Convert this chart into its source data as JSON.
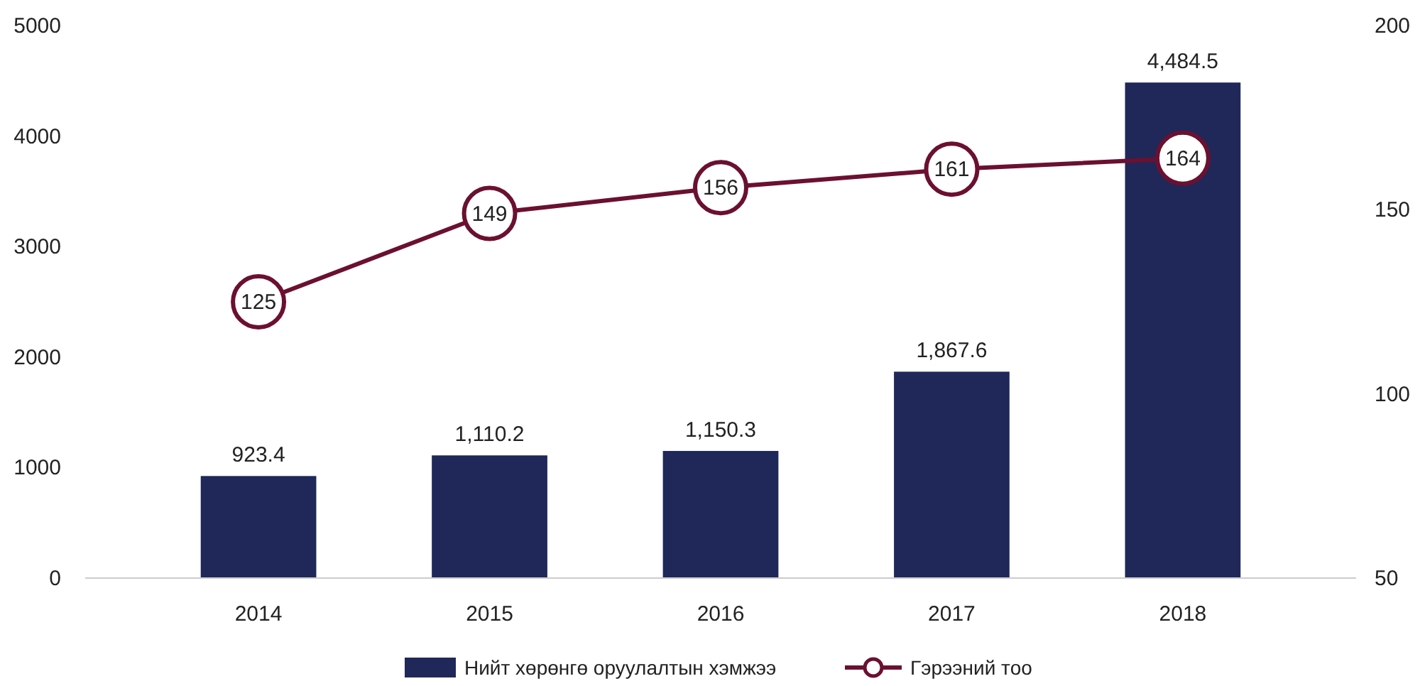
{
  "chart_data": {
    "type": "bar",
    "categories": [
      "2014",
      "2015",
      "2016",
      "2017",
      "2018"
    ],
    "series": [
      {
        "name": "Нийт хөрөнгө оруулалтын хэмжээ",
        "color": "#1f2859",
        "values": [
          923.4,
          1110.2,
          1150.3,
          1867.6,
          4484.5
        ],
        "value_labels": [
          "923.4",
          "1,110.2",
          "1,150.3",
          "1,867.6",
          "4,484.5"
        ]
      },
      {
        "name": "Гэрээний тоо",
        "type": "line",
        "axis": "y2",
        "color": "#6b1030",
        "values": [
          125,
          149,
          156,
          161,
          164
        ],
        "value_labels": [
          "125",
          "149",
          "156",
          "161",
          "164"
        ]
      }
    ],
    "ylim": [
      0,
      5000
    ],
    "yticks": [
      0,
      1000,
      2000,
      3000,
      4000,
      5000
    ],
    "y2lim": [
      50,
      200
    ],
    "y2ticks": [
      50,
      100,
      150,
      200
    ],
    "legend": "bottom",
    "marker": "circle",
    "grid": false
  }
}
